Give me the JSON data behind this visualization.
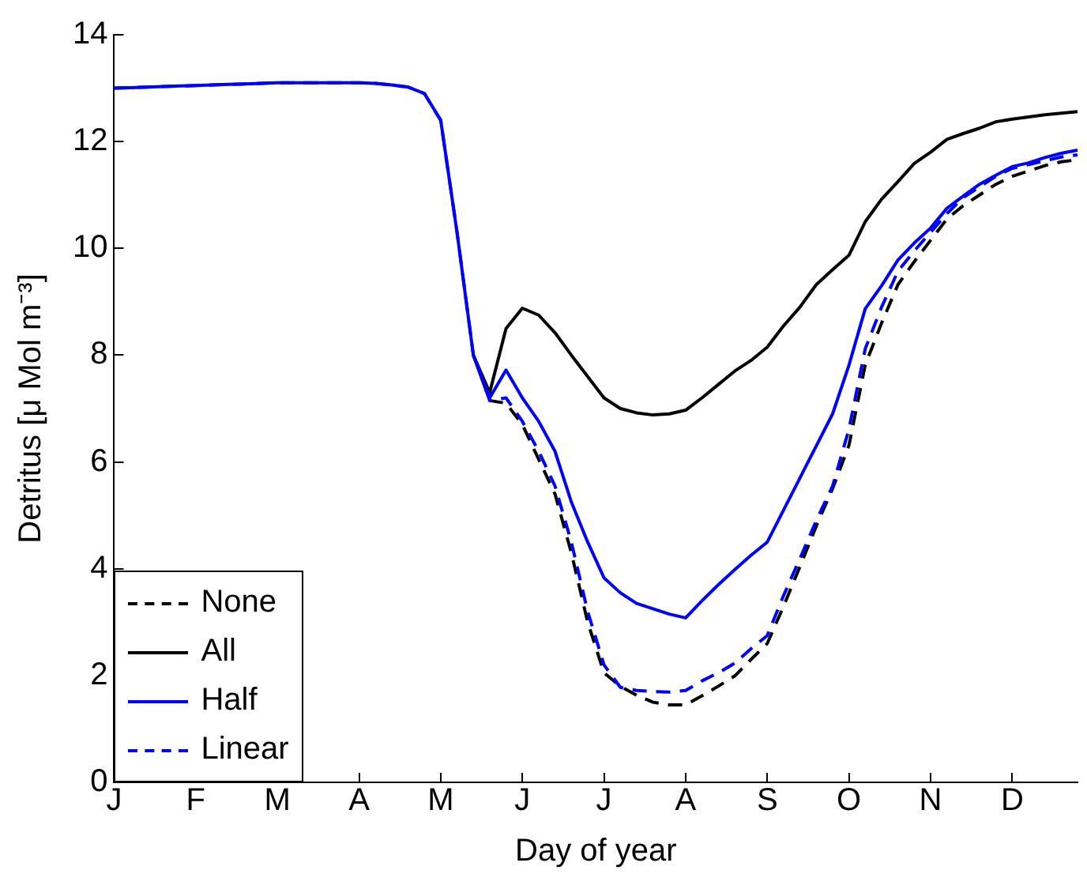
{
  "chart_data": {
    "type": "line",
    "xlabel": "Day of year",
    "ylabel": "Detritus [μ Mol m⁻³]",
    "categories": [
      "J",
      null,
      null,
      null,
      null,
      "F",
      null,
      null,
      null,
      null,
      "M",
      null,
      null,
      null,
      null,
      "A",
      null,
      null,
      null,
      null,
      "M",
      null,
      null,
      null,
      null,
      "J",
      null,
      null,
      null,
      null,
      "J",
      null,
      null,
      null,
      null,
      "A",
      null,
      null,
      null,
      null,
      "S",
      null,
      null,
      null,
      null,
      "O",
      null,
      null,
      null,
      null,
      "N",
      null,
      null,
      null,
      null,
      "D",
      null,
      null,
      null,
      null
    ],
    "ylim": [
      0,
      14
    ],
    "yticks": [
      0,
      2,
      4,
      6,
      8,
      10,
      12,
      14
    ],
    "grid": false,
    "legend": "bottom left",
    "marker": "none",
    "series": [
      {
        "name": "None",
        "color": "#000000",
        "line_style": "dashed",
        "values": [
          null,
          null,
          null,
          null,
          null,
          null,
          null,
          null,
          null,
          null,
          null,
          null,
          null,
          null,
          null,
          null,
          null,
          null,
          null,
          null,
          null,
          null,
          8.0,
          7.15,
          7.1,
          6.7,
          6.05,
          5.4,
          4.3,
          3.0,
          2.05,
          1.8,
          1.63,
          1.5,
          1.45,
          1.45,
          1.62,
          1.8,
          1.99,
          2.3,
          2.6,
          3.3,
          4.04,
          4.8,
          5.5,
          6.31,
          7.82,
          8.6,
          9.32,
          9.75,
          10.15,
          10.55,
          10.8,
          11.0,
          11.2,
          11.35,
          11.45,
          11.55,
          11.62,
          11.66
        ]
      },
      {
        "name": "All",
        "color": "#000000",
        "line_style": "solid",
        "values": [
          null,
          null,
          null,
          null,
          null,
          null,
          null,
          null,
          null,
          null,
          null,
          null,
          null,
          null,
          null,
          null,
          null,
          null,
          null,
          null,
          null,
          null,
          8.0,
          7.3,
          8.5,
          8.88,
          8.75,
          8.42,
          8.0,
          7.6,
          7.2,
          7.0,
          6.92,
          6.88,
          6.9,
          6.97,
          7.2,
          7.45,
          7.7,
          7.9,
          8.15,
          8.55,
          8.9,
          9.32,
          9.6,
          9.87,
          10.5,
          10.92,
          11.25,
          11.59,
          11.8,
          12.04,
          12.15,
          12.25,
          12.37,
          12.42,
          12.46,
          12.5,
          12.53,
          12.56
        ]
      },
      {
        "name": "Half",
        "color": "#0000ff",
        "line_style": "solid",
        "values": [
          13.0,
          13.01,
          13.02,
          13.03,
          13.04,
          13.05,
          13.06,
          13.07,
          13.08,
          13.09,
          13.1,
          13.1,
          13.1,
          13.1,
          13.1,
          13.1,
          13.09,
          13.06,
          13.02,
          12.9,
          12.4,
          10.3,
          8.0,
          7.2,
          7.72,
          7.2,
          6.76,
          6.2,
          5.25,
          4.5,
          3.83,
          3.55,
          3.35,
          3.25,
          3.15,
          3.08,
          3.4,
          3.7,
          3.98,
          4.25,
          4.5,
          5.1,
          5.7,
          6.3,
          6.9,
          7.81,
          8.87,
          9.3,
          9.78,
          10.1,
          10.38,
          10.75,
          10.98,
          11.2,
          11.37,
          11.53,
          11.6,
          11.7,
          11.78,
          11.84
        ]
      },
      {
        "name": "Linear",
        "color": "#0000ff",
        "line_style": "dashed",
        "values": [
          13.0,
          13.01,
          13.02,
          13.03,
          13.04,
          13.05,
          13.06,
          13.07,
          13.08,
          13.09,
          13.1,
          13.1,
          13.1,
          13.1,
          13.1,
          13.1,
          13.09,
          13.06,
          13.02,
          12.9,
          12.4,
          10.3,
          8.0,
          7.15,
          7.2,
          6.76,
          6.2,
          5.55,
          4.5,
          3.2,
          2.2,
          1.78,
          1.72,
          1.7,
          1.69,
          1.72,
          1.9,
          2.05,
          2.23,
          2.5,
          2.75,
          3.5,
          4.19,
          4.9,
          5.55,
          6.61,
          8.12,
          8.9,
          9.57,
          9.95,
          10.3,
          10.65,
          10.95,
          11.15,
          11.35,
          11.5,
          11.57,
          11.64,
          11.71,
          11.75
        ]
      }
    ]
  }
}
